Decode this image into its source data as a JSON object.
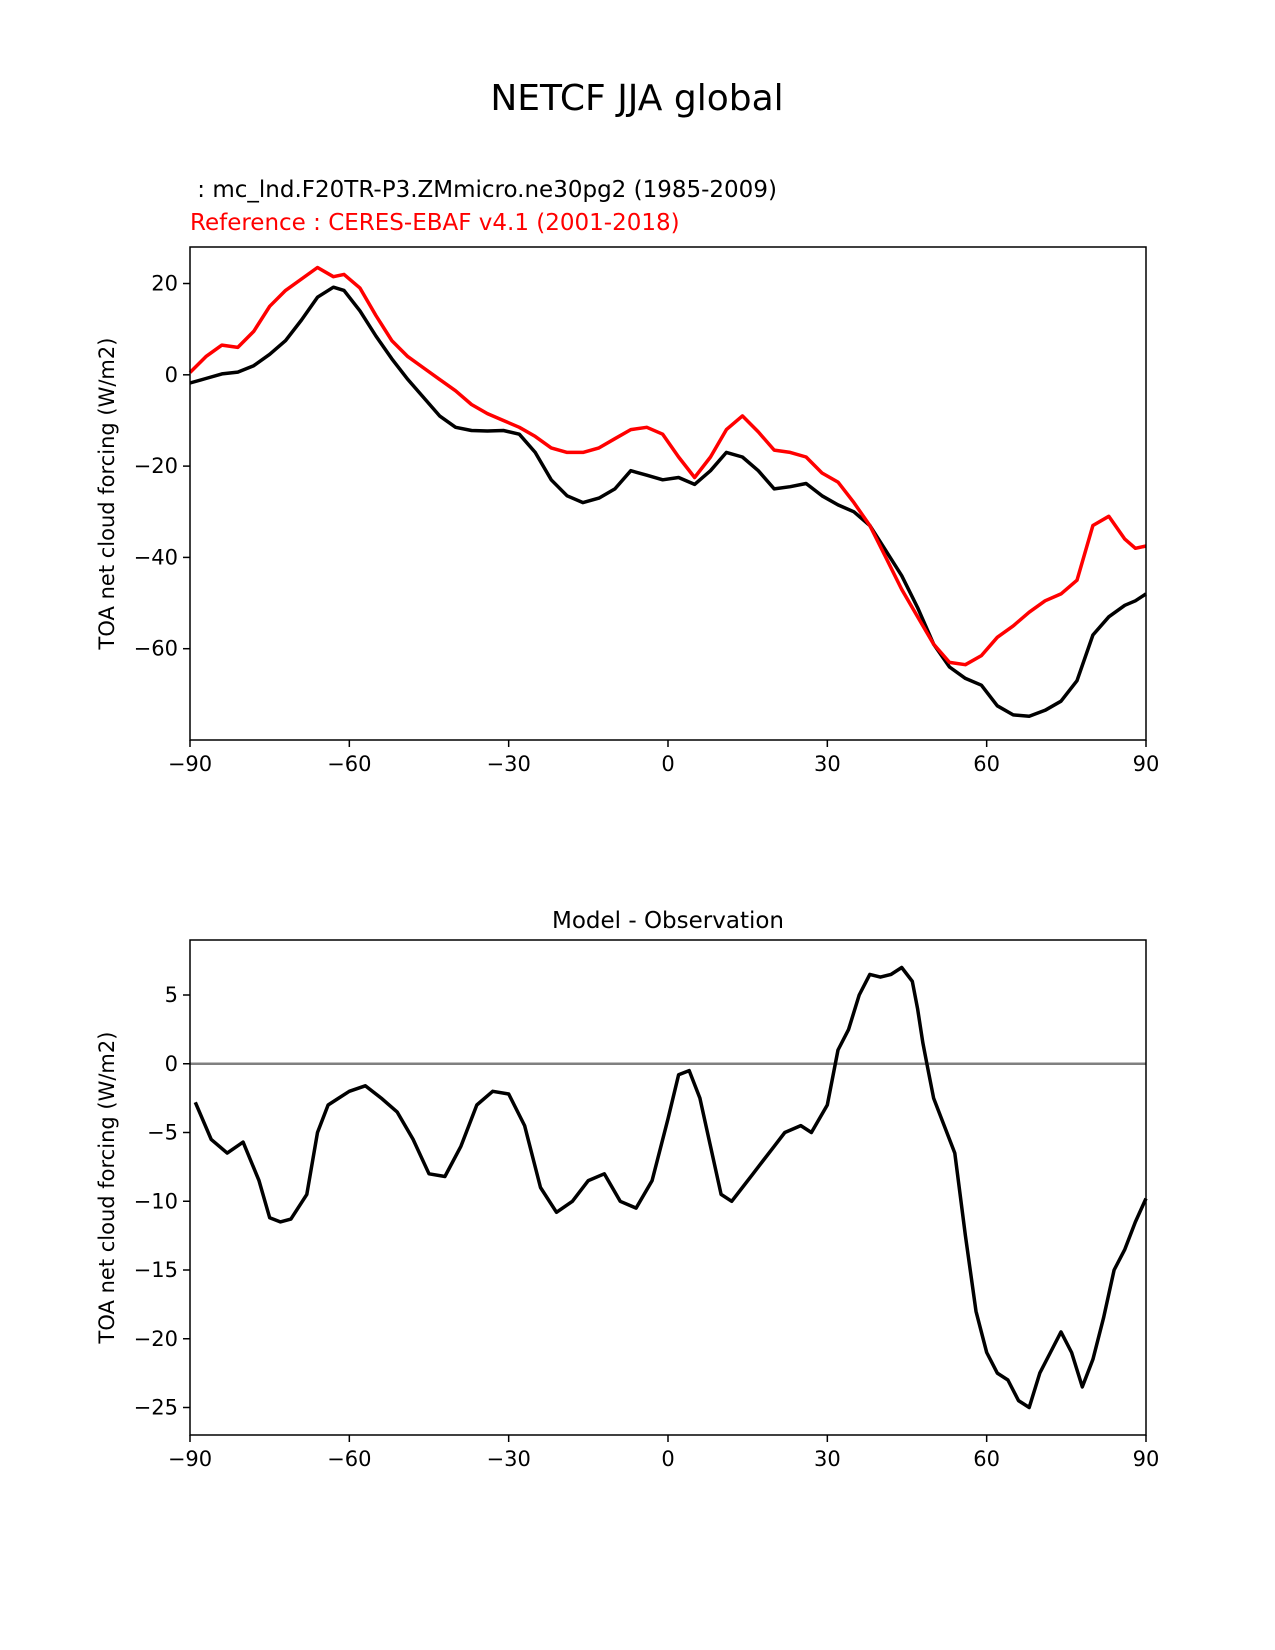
{
  "figure": {
    "title": "NETCF JJA global",
    "model_label": " : mc_lnd.F20TR-P3.ZMmicro.ne30pg2 (1985-2009)",
    "reference_label": "Reference : CERES-EBAF v4.1 (2001-2018)"
  },
  "colors": {
    "model": "#000000",
    "reference": "#ff0000",
    "zero_line": "#808080"
  },
  "chart_data": [
    {
      "type": "line",
      "title": "",
      "xlabel": "",
      "ylabel": "TOA net cloud forcing (W/m2)",
      "xlim": [
        -90,
        90
      ],
      "ylim": [
        -80,
        28
      ],
      "xticks": [
        -90,
        -60,
        -30,
        0,
        30,
        60,
        90
      ],
      "yticks": [
        20,
        0,
        -20,
        -40,
        -60
      ],
      "grid": false,
      "x": [
        -90,
        -87,
        -84,
        -81,
        -78,
        -75,
        -72,
        -69,
        -66,
        -63,
        -61,
        -58,
        -55,
        -52,
        -49,
        -46,
        -43,
        -40,
        -37,
        -34,
        -31,
        -28,
        -25,
        -22,
        -19,
        -16,
        -13,
        -10,
        -7,
        -4,
        -1,
        2,
        5,
        8,
        11,
        14,
        17,
        20,
        23,
        26,
        29,
        32,
        35,
        38,
        41,
        44,
        47,
        50,
        53,
        56,
        59,
        62,
        65,
        68,
        71,
        74,
        77,
        80,
        83,
        86,
        88,
        90
      ],
      "series": [
        {
          "name": "model",
          "values": [
            -1.8,
            -0.8,
            0.2,
            0.6,
            2.0,
            4.5,
            7.5,
            12.0,
            17.0,
            19.2,
            18.5,
            14.0,
            8.5,
            3.5,
            -1.0,
            -5.0,
            -9.0,
            -11.5,
            -12.2,
            -12.3,
            -12.2,
            -13.0,
            -17.0,
            -23.0,
            -26.5,
            -28.0,
            -27.0,
            -25.0,
            -21.0,
            -22.0,
            -23.0,
            -22.5,
            -24.0,
            -21.0,
            -17.0,
            -18.0,
            -21.0,
            -25.0,
            -24.5,
            -23.8,
            -26.5,
            -28.5,
            -30.0,
            -33.0,
            -38.5,
            -44.0,
            -51.0,
            -59.0,
            -64.0,
            -66.5,
            -68.0,
            -72.5,
            -74.5,
            -74.8,
            -73.5,
            -71.5,
            -67.0,
            -57.0,
            -53.0,
            -50.5,
            -49.5,
            -48.0
          ]
        },
        {
          "name": "reference",
          "values": [
            0.5,
            4.0,
            6.5,
            6.0,
            9.5,
            15.0,
            18.5,
            21.0,
            23.5,
            21.5,
            22.0,
            19.0,
            13.0,
            7.5,
            4.0,
            1.5,
            -1.0,
            -3.5,
            -6.5,
            -8.5,
            -10.0,
            -11.5,
            -13.5,
            -16.0,
            -17.0,
            -17.0,
            -16.0,
            -14.0,
            -12.0,
            -11.5,
            -13.0,
            -18.0,
            -22.5,
            -18.0,
            -12.0,
            -9.0,
            -12.5,
            -16.5,
            -17.0,
            -18.0,
            -21.5,
            -23.5,
            -28.0,
            -33.0,
            -40.0,
            -47.0,
            -53.0,
            -59.0,
            -63.0,
            -63.5,
            -61.5,
            -57.5,
            -55.0,
            -52.0,
            -49.5,
            -48.0,
            -45.0,
            -33.0,
            -31.0,
            -36.0,
            -38.0,
            -37.5
          ]
        }
      ]
    },
    {
      "type": "line",
      "title": "Model - Observation",
      "xlabel": "",
      "ylabel": "TOA net cloud forcing (W/m2)",
      "xlim": [
        -90,
        90
      ],
      "ylim": [
        -27,
        9
      ],
      "xticks": [
        -90,
        -60,
        -30,
        0,
        30,
        60,
        90
      ],
      "yticks": [
        5,
        0,
        -5,
        -10,
        -15,
        -20,
        -25
      ],
      "grid": false,
      "zero_line": true,
      "x": [
        -89,
        -86,
        -83,
        -80,
        -77,
        -75,
        -73,
        -71,
        -68,
        -66,
        -64,
        -62,
        -60,
        -57,
        -54,
        -51,
        -48,
        -45,
        -42,
        -39,
        -36,
        -33,
        -30,
        -27,
        -24,
        -21,
        -18,
        -15,
        -12,
        -9,
        -6,
        -3,
        0,
        2,
        4,
        6,
        8,
        10,
        12,
        14,
        16,
        18,
        20,
        22,
        25,
        27,
        30,
        32,
        34,
        36,
        38,
        40,
        42,
        44,
        46,
        47,
        48,
        49,
        50,
        52,
        54,
        56,
        58,
        60,
        62,
        64,
        66,
        68,
        70,
        72,
        74,
        76,
        78,
        80,
        82,
        84,
        86,
        88,
        90
      ],
      "series": [
        {
          "name": "",
          "values": [
            -2.8,
            -5.5,
            -6.5,
            -5.7,
            -8.5,
            -11.2,
            -11.5,
            -11.3,
            -9.5,
            -5.0,
            -3.0,
            -2.5,
            -2.0,
            -1.6,
            -2.5,
            -3.5,
            -5.5,
            -8.0,
            -8.2,
            -6.0,
            -3.0,
            -2.0,
            -2.2,
            -4.5,
            -9.0,
            -10.8,
            -10.0,
            -8.5,
            -8.0,
            -10.0,
            -10.5,
            -8.5,
            -4.0,
            -0.8,
            -0.5,
            -2.5,
            -6.0,
            -9.5,
            -10.0,
            -9.0,
            -8.0,
            -7.0,
            -6.0,
            -5.0,
            -4.5,
            -5.0,
            -3.0,
            1.0,
            2.5,
            5.0,
            6.5,
            6.3,
            6.5,
            7.0,
            6.0,
            4.0,
            1.5,
            -0.5,
            -2.5,
            -4.5,
            -6.5,
            -12.5,
            -18.0,
            -21.0,
            -22.5,
            -23.0,
            -24.5,
            -25.0,
            -22.5,
            -21.0,
            -19.5,
            -21.0,
            -23.5,
            -21.5,
            -18.5,
            -15.0,
            -13.5,
            -11.5,
            -9.8
          ]
        }
      ]
    }
  ]
}
